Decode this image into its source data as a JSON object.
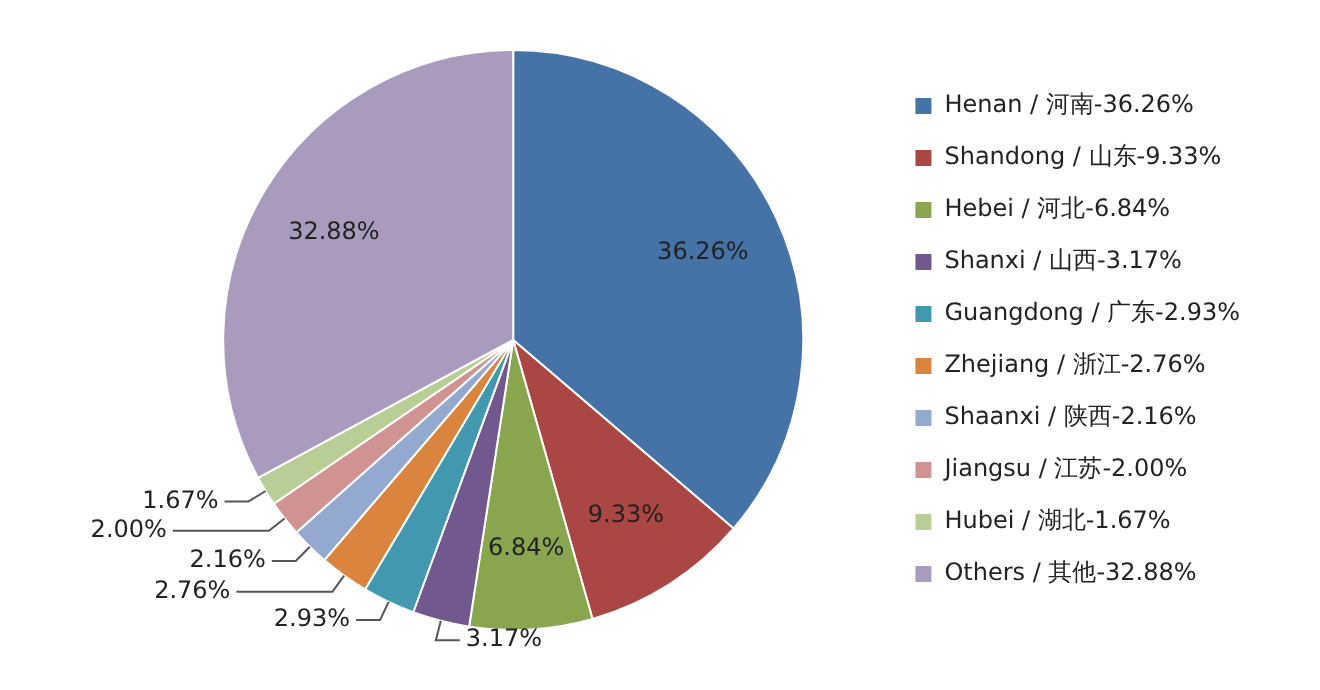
{
  "chart_data": {
    "type": "pie",
    "categories": [
      "Henan / 河南-36.26%",
      "Shandong / 山东-9.33%",
      "Hebei / 河北-6.84%",
      "Shanxi / 山西-3.17%",
      "Guangdong / 广东-2.93%",
      "Zhejiang / 浙江-2.76%",
      "Shaanxi / 陕西-2.16%",
      "Jiangsu / 江苏-2.00%",
      "Hubei / 湖北-1.67%",
      "Others / 其他-32.88%"
    ],
    "values": [
      36.26,
      9.33,
      6.84,
      3.17,
      2.93,
      2.76,
      2.16,
      2.0,
      1.67,
      32.88
    ],
    "colors": [
      "#4572a7",
      "#aa4643",
      "#89a54e",
      "#71588f",
      "#4198af",
      "#db843d",
      "#93a9cf",
      "#d19392",
      "#b9cd96",
      "#a99bbd"
    ],
    "value_labels": [
      "36.26%",
      "9.33%",
      "6.84%",
      "3.17%",
      "2.93%",
      "2.76%",
      "2.16%",
      "2.00%",
      "1.67%",
      "32.88%"
    ],
    "legend": "right"
  }
}
